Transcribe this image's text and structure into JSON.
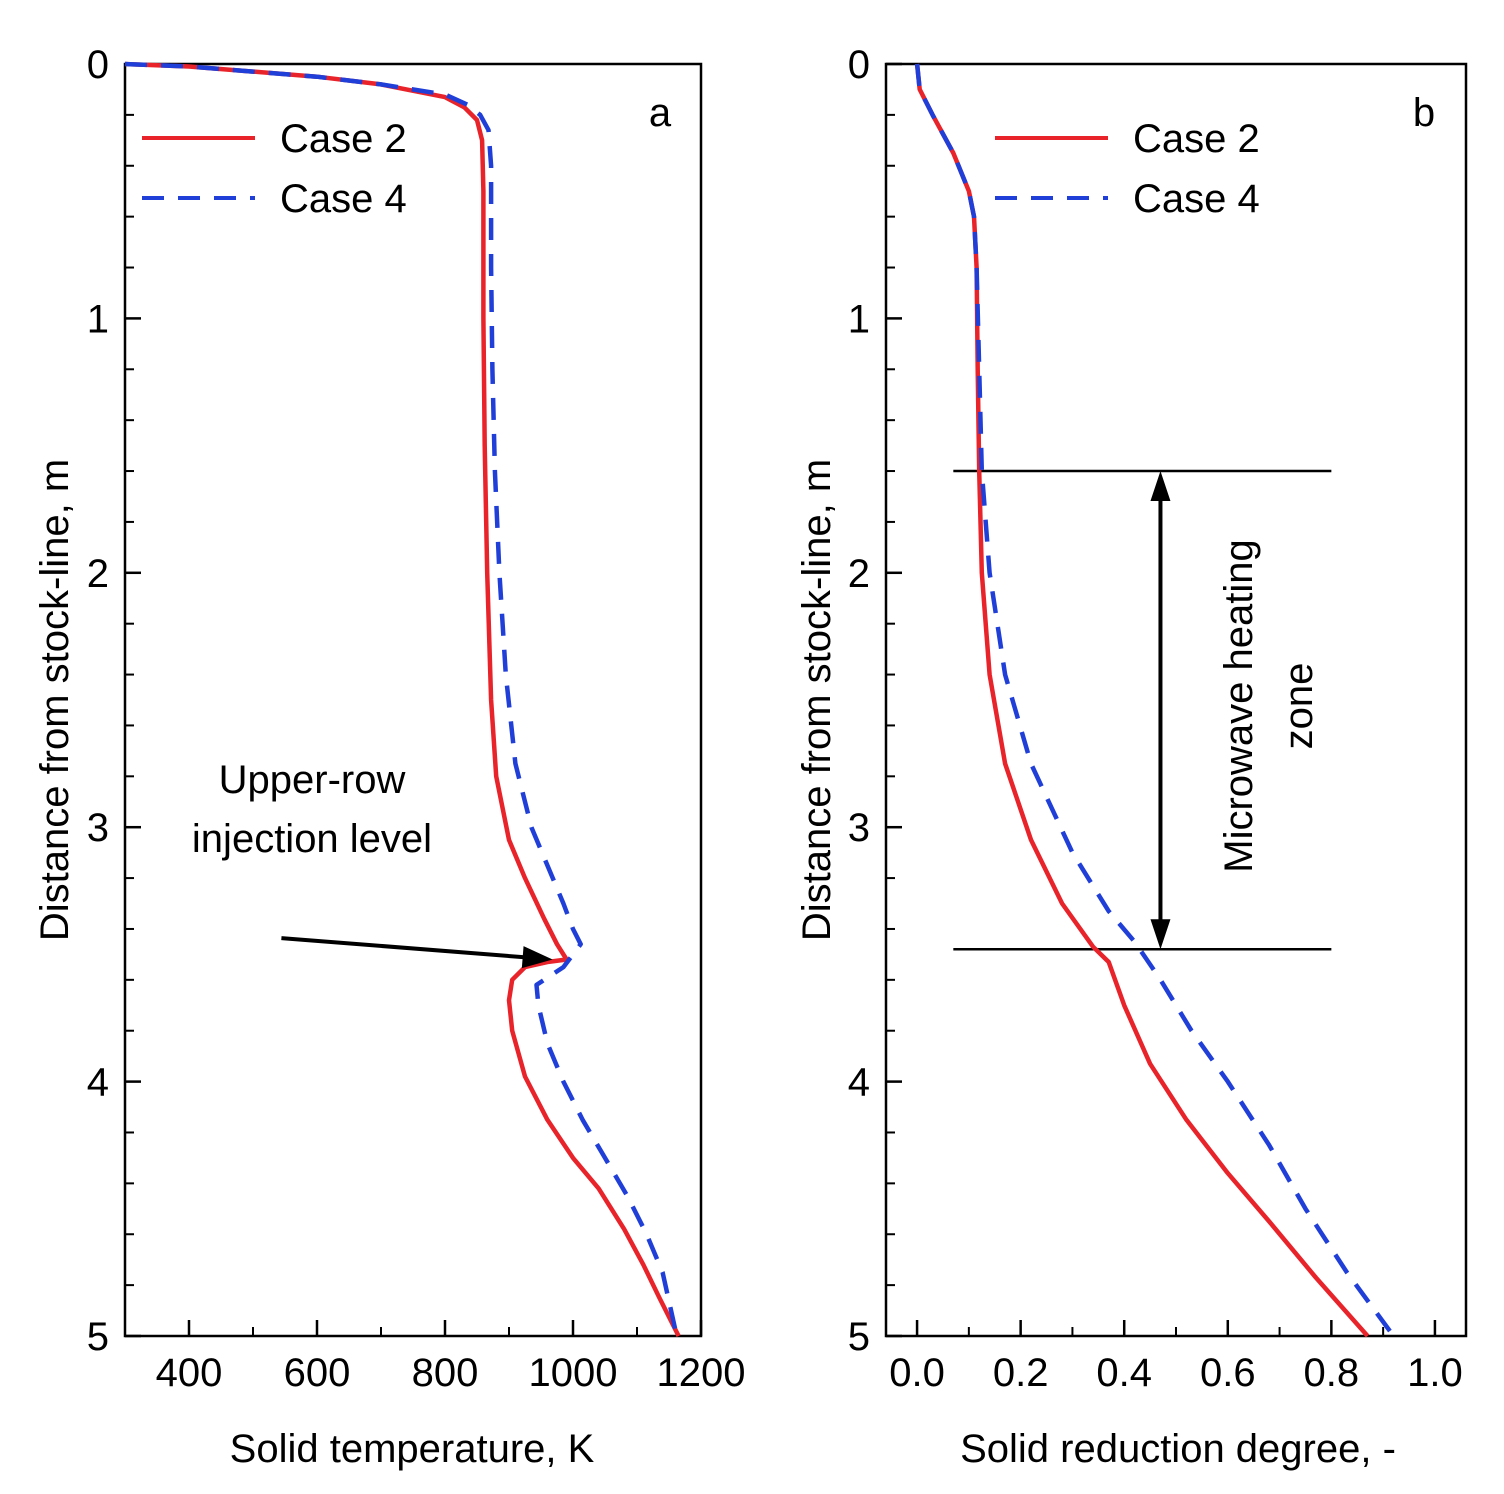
{
  "chart_data": [
    {
      "panel": "a",
      "type": "line",
      "title": "",
      "panel_label": "a",
      "xlabel": "Solid temperature, K",
      "ylabel": "Distance from stock-line, m",
      "xlim": [
        300,
        1200
      ],
      "ylim": [
        0,
        5
      ],
      "y_inverted": true,
      "x_ticks": [
        400,
        600,
        800,
        1000,
        1200
      ],
      "x_tick_labels": [
        "400",
        "600",
        "800",
        "1000",
        "1200"
      ],
      "y_ticks": [
        0,
        1,
        2,
        3,
        4,
        5
      ],
      "y_tick_labels": [
        "0",
        "1",
        "2",
        "3",
        "4",
        "5"
      ],
      "legend": {
        "placement": "top-left",
        "entries": [
          "Case 2",
          "Case 4"
        ]
      },
      "series": [
        {
          "name": "Case 2",
          "color": "#e8232a",
          "style": "solid",
          "points": [
            [
              300,
              0
            ],
            [
              400,
              0.01
            ],
            [
              500,
              0.03
            ],
            [
              600,
              0.05
            ],
            [
              700,
              0.08
            ],
            [
              800,
              0.13
            ],
            [
              830,
              0.17
            ],
            [
              850,
              0.22
            ],
            [
              858,
              0.3
            ],
            [
              860,
              0.5
            ],
            [
              860,
              1.0
            ],
            [
              862,
              1.5
            ],
            [
              866,
              2.0
            ],
            [
              872,
              2.5
            ],
            [
              880,
              2.8
            ],
            [
              900,
              3.05
            ],
            [
              925,
              3.2
            ],
            [
              955,
              3.36
            ],
            [
              975,
              3.46
            ],
            [
              990,
              3.52
            ],
            [
              960,
              3.53
            ],
            [
              925,
              3.55
            ],
            [
              905,
              3.6
            ],
            [
              900,
              3.68
            ],
            [
              905,
              3.8
            ],
            [
              925,
              3.98
            ],
            [
              960,
              4.15
            ],
            [
              1000,
              4.3
            ],
            [
              1040,
              4.42
            ],
            [
              1080,
              4.58
            ],
            [
              1110,
              4.72
            ],
            [
              1135,
              4.85
            ],
            [
              1165,
              5.0
            ]
          ]
        },
        {
          "name": "Case 4",
          "color": "#1f3fd8",
          "style": "dashed",
          "points": [
            [
              300,
              0
            ],
            [
              400,
              0.01
            ],
            [
              500,
              0.03
            ],
            [
              600,
              0.05
            ],
            [
              700,
              0.08
            ],
            [
              800,
              0.12
            ],
            [
              835,
              0.16
            ],
            [
              855,
              0.2
            ],
            [
              868,
              0.26
            ],
            [
              872,
              0.4
            ],
            [
              872,
              0.8
            ],
            [
              874,
              1.2
            ],
            [
              878,
              1.6
            ],
            [
              885,
              2.0
            ],
            [
              895,
              2.4
            ],
            [
              910,
              2.75
            ],
            [
              935,
              3.0
            ],
            [
              960,
              3.15
            ],
            [
              985,
              3.3
            ],
            [
              1000,
              3.4
            ],
            [
              1012,
              3.46
            ],
            [
              985,
              3.55
            ],
            [
              955,
              3.6
            ],
            [
              943,
              3.62
            ],
            [
              946,
              3.7
            ],
            [
              960,
              3.85
            ],
            [
              985,
              4.0
            ],
            [
              1015,
              4.15
            ],
            [
              1050,
              4.3
            ],
            [
              1085,
              4.45
            ],
            [
              1115,
              4.6
            ],
            [
              1140,
              4.75
            ],
            [
              1162,
              5.0
            ]
          ]
        }
      ],
      "annotations": [
        {
          "text_lines": [
            "Upper-row",
            "injection level"
          ],
          "type": "arrow",
          "arrow_from": [
            560,
            3.2
          ],
          "arrow_to": [
            990,
            3.52
          ]
        }
      ]
    },
    {
      "panel": "b",
      "type": "line",
      "title": "",
      "panel_label": "b",
      "xlabel": "Solid reduction degree, -",
      "ylabel": "Distance from stock-line, m",
      "xlim": [
        -0.06,
        1.06
      ],
      "ylim": [
        0,
        5
      ],
      "y_inverted": true,
      "x_ticks": [
        0.0,
        0.2,
        0.4,
        0.6,
        0.8,
        1.0
      ],
      "x_tick_labels": [
        "0.0",
        "0.2",
        "0.4",
        "0.6",
        "0.8",
        "1.0"
      ],
      "y_ticks": [
        0,
        1,
        2,
        3,
        4,
        5
      ],
      "y_tick_labels": [
        "0",
        "1",
        "2",
        "3",
        "4",
        "5"
      ],
      "legend": {
        "placement": "top-right",
        "entries": [
          "Case 2",
          "Case 4"
        ]
      },
      "series": [
        {
          "name": "Case 2",
          "color": "#e8232a",
          "style": "solid",
          "points": [
            [
              0,
              0
            ],
            [
              0.005,
              0.1
            ],
            [
              0.03,
              0.2
            ],
            [
              0.07,
              0.35
            ],
            [
              0.1,
              0.5
            ],
            [
              0.11,
              0.6
            ],
            [
              0.115,
              0.8
            ],
            [
              0.117,
              1.2
            ],
            [
              0.12,
              1.6
            ],
            [
              0.125,
              2.0
            ],
            [
              0.14,
              2.4
            ],
            [
              0.17,
              2.75
            ],
            [
              0.22,
              3.05
            ],
            [
              0.28,
              3.3
            ],
            [
              0.34,
              3.47
            ],
            [
              0.37,
              3.53
            ],
            [
              0.4,
              3.7
            ],
            [
              0.45,
              3.93
            ],
            [
              0.52,
              4.15
            ],
            [
              0.6,
              4.36
            ],
            [
              0.68,
              4.55
            ],
            [
              0.77,
              4.77
            ],
            [
              0.87,
              5.0
            ]
          ]
        },
        {
          "name": "Case 4",
          "color": "#1f3fd8",
          "style": "dashed",
          "points": [
            [
              0,
              0
            ],
            [
              0.005,
              0.1
            ],
            [
              0.03,
              0.2
            ],
            [
              0.07,
              0.35
            ],
            [
              0.1,
              0.5
            ],
            [
              0.11,
              0.6
            ],
            [
              0.115,
              0.8
            ],
            [
              0.12,
              1.2
            ],
            [
              0.125,
              1.6
            ],
            [
              0.14,
              2.0
            ],
            [
              0.17,
              2.4
            ],
            [
              0.22,
              2.75
            ],
            [
              0.3,
              3.1
            ],
            [
              0.37,
              3.33
            ],
            [
              0.42,
              3.45
            ],
            [
              0.47,
              3.6
            ],
            [
              0.53,
              3.8
            ],
            [
              0.6,
              4.0
            ],
            [
              0.68,
              4.25
            ],
            [
              0.75,
              4.5
            ],
            [
              0.83,
              4.75
            ],
            [
              0.92,
              5.0
            ]
          ]
        }
      ],
      "zone": {
        "label_lines": [
          "Microwave heating",
          "zone"
        ],
        "y_top": 1.6,
        "y_bottom": 3.48,
        "x_start": 0.07,
        "x_end": 0.8,
        "arrow_x": 0.47
      }
    }
  ]
}
